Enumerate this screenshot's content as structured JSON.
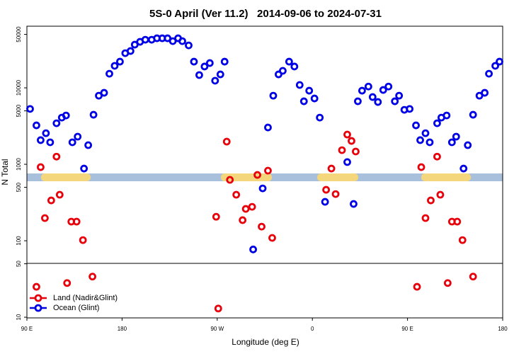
{
  "chart_data": {
    "type": "scatter",
    "title": "5S-0 April (Ver 11.2)   2014-09-06 to 2024-07-31",
    "x_label": "Longitude (deg E)",
    "y_label": "N Total",
    "log_y": true,
    "legend": "bottomleft",
    "xlim": [
      90,
      540
    ],
    "xticks": [
      {
        "value": 90,
        "label": "90 E"
      },
      180,
      {
        "value": 270,
        "label": "90 W"
      },
      {
        "value": 360,
        "label": "0"
      },
      {
        "value": 450,
        "label": "90 E"
      },
      {
        "value": 540,
        "label": "180"
      }
    ],
    "ylim": [
      9.8,
      64000
    ],
    "yticks": [
      10,
      50,
      100,
      500,
      1000,
      5000,
      10000,
      50000
    ],
    "series": [
      {
        "name": "Land (Nadir&Glint)",
        "color": "#e8000b",
        "x": [
          99,
          103,
          107,
          113,
          118,
          121,
          128,
          132,
          137,
          143,
          152,
          269,
          271,
          279,
          282,
          288,
          294,
          297,
          303,
          308,
          312,
          318,
          322,
          373,
          378,
          382,
          388,
          393,
          397,
          401,
          459,
          463,
          467,
          472,
          478,
          481,
          488,
          492,
          497,
          502,
          512
        ],
        "values": [
          25,
          918,
          198,
          337,
          1260,
          400,
          28,
          178,
          178,
          102,
          34,
          206,
          13,
          1980,
          626,
          400,
          186,
          261,
          278,
          726,
          153,
          826,
          109,
          464,
          880,
          408,
          1530,
          2450,
          2020,
          1470,
          25,
          918,
          198,
          337,
          1260,
          400,
          28,
          178,
          178,
          102,
          34
        ]
      },
      {
        "name": "Ocean (Glint)",
        "color": "#0000e6",
        "x": [
          93,
          99,
          103,
          108,
          112,
          118,
          123,
          127,
          133,
          138,
          144,
          148,
          153,
          158,
          163,
          168,
          173,
          178,
          183,
          188,
          192,
          197,
          202,
          208,
          213,
          218,
          223,
          228,
          233,
          237,
          243,
          248,
          253,
          258,
          263,
          268,
          273,
          277,
          304,
          313,
          318,
          323,
          328,
          332,
          338,
          343,
          348,
          352,
          357,
          362,
          367,
          372,
          393,
          399,
          403,
          407,
          413,
          417,
          422,
          427,
          432,
          438,
          442,
          447,
          452,
          458,
          462,
          467,
          471,
          478,
          482,
          487,
          492,
          496,
          503,
          507,
          512,
          518,
          523,
          527,
          533,
          537
        ],
        "values": [
          5300,
          3230,
          2070,
          2550,
          1940,
          3440,
          4080,
          4350,
          1940,
          2300,
          880,
          1780,
          4450,
          7900,
          8610,
          15300,
          19400,
          22000,
          28400,
          30300,
          36700,
          40000,
          42600,
          42600,
          44500,
          44500,
          44500,
          40800,
          44500,
          40800,
          35900,
          22000,
          14700,
          19000,
          21100,
          12400,
          15000,
          22000,
          77,
          484,
          3030,
          7900,
          15000,
          16700,
          22000,
          19000,
          10900,
          6670,
          9180,
          7260,
          4080,
          323,
          1070,
          303,
          6670,
          9180,
          10400,
          7580,
          6530,
          9380,
          10400,
          6670,
          7900,
          5160,
          5300,
          3230,
          2070,
          2550,
          1940,
          3440,
          4080,
          4350,
          1940,
          2300,
          880,
          1780,
          4450,
          7900,
          8610,
          15300,
          19400,
          22000
        ]
      }
    ]
  }
}
